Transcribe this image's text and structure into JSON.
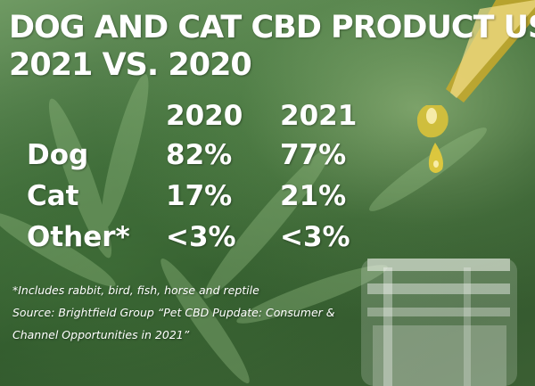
{
  "title": {
    "line1": "DOG AND CAT CBD PRODUCT USAGE,",
    "line2": "2021 VS. 2020"
  },
  "chart_data": {
    "type": "table",
    "columns": [
      "2020",
      "2021"
    ],
    "rows": [
      {
        "label": "Dog",
        "values": [
          "82%",
          "77%"
        ]
      },
      {
        "label": "Cat",
        "values": [
          "17%",
          "21%"
        ]
      },
      {
        "label": "Other*",
        "values": [
          "<3%",
          "<3%"
        ]
      }
    ]
  },
  "footnote": "*Includes rabbit, bird, fish, horse and reptile",
  "source": {
    "line1": "Source: Brightfield Group “Pet CBD Pupdate: Consumer &",
    "line2": "Channel Opportunities in 2021”"
  },
  "colors": {
    "text": "#ffffff",
    "background": "#3f6b3a",
    "oil": "#d7b42a"
  }
}
